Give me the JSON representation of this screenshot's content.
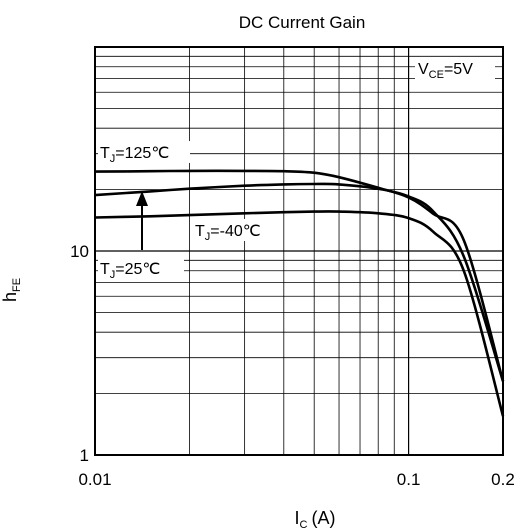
{
  "chart_data": {
    "type": "line",
    "title": "DC Current Gain",
    "xlabel": {
      "main": "I",
      "sub": "C",
      "unit": "(A)"
    },
    "ylabel": {
      "main": "h",
      "sub": "FE"
    },
    "x_scale": "log",
    "y_scale": "log",
    "xlim": [
      0.01,
      0.2
    ],
    "ylim": [
      1,
      100
    ],
    "x_ticks": [
      0.01,
      0.1,
      0.2
    ],
    "x_tick_labels": [
      "0.01",
      "0.1",
      "0.2"
    ],
    "y_ticks": [
      1,
      10
    ],
    "y_tick_labels": [
      "1",
      "10"
    ],
    "grid": true,
    "condition": {
      "main": "V",
      "sub": "CE",
      "rest": "=5V"
    },
    "series": [
      {
        "name": "TJ=125℃",
        "label": {
          "main": "T",
          "sub": "J",
          "rest": "=125℃"
        },
        "x": [
          0.01,
          0.015,
          0.02,
          0.03,
          0.04,
          0.05,
          0.06,
          0.08,
          0.1,
          0.12,
          0.15,
          0.2
        ],
        "y": [
          24.5,
          24.6,
          24.7,
          24.7,
          24.6,
          24.2,
          23.0,
          20.4,
          18.3,
          15.2,
          11.3,
          2.3
        ]
      },
      {
        "name": "TJ=25℃",
        "label": {
          "main": "T",
          "sub": "J",
          "rest": "=25℃"
        },
        "x": [
          0.01,
          0.015,
          0.02,
          0.03,
          0.04,
          0.05,
          0.06,
          0.08,
          0.1,
          0.12,
          0.15,
          0.2
        ],
        "y": [
          18.8,
          19.6,
          20.2,
          20.9,
          21.2,
          21.3,
          21.2,
          20.2,
          18.5,
          15.6,
          9.4,
          2.3
        ]
      },
      {
        "name": "TJ=-40℃",
        "label": {
          "main": "T",
          "sub": "J",
          "rest": "=-40℃"
        },
        "x": [
          0.01,
          0.015,
          0.02,
          0.03,
          0.04,
          0.05,
          0.06,
          0.08,
          0.1,
          0.12,
          0.15,
          0.2
        ],
        "y": [
          14.6,
          14.8,
          15.0,
          15.3,
          15.5,
          15.6,
          15.6,
          15.3,
          14.5,
          12.4,
          8.0,
          1.55
        ]
      }
    ]
  }
}
